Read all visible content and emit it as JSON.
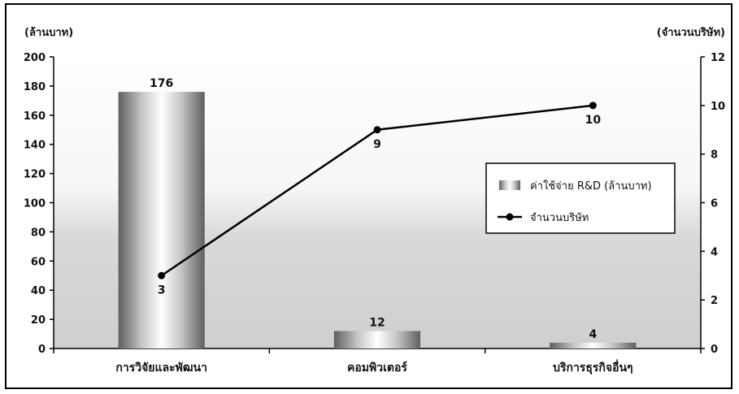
{
  "chart_data": {
    "type": "bar",
    "categories": [
      "การวิจัยและพัฒนา",
      "คอมพิวเตอร์",
      "บริการธุรกิจอื่นๆ"
    ],
    "series": [
      {
        "name": "ค่าใช้จ่าย R&D (ล้านบาท)",
        "type": "bar",
        "axis": "left",
        "values": [
          176,
          12,
          4
        ],
        "data_labels": [
          "176",
          "12",
          "4"
        ]
      },
      {
        "name": "จำนวนบริษัท",
        "type": "line",
        "axis": "right",
        "values": [
          3,
          9,
          10
        ],
        "data_labels": [
          "3",
          "9",
          "10"
        ]
      }
    ],
    "ylabel_left": "(ล้านบาท)",
    "ylabel_right": "(จำนวนบริษัท)",
    "ylim_left": [
      0,
      200
    ],
    "ylim_right": [
      0,
      12
    ],
    "yticks_left": [
      "0",
      "20",
      "40",
      "60",
      "80",
      "100",
      "120",
      "140",
      "160",
      "180",
      "200"
    ],
    "yticks_right": [
      "0",
      "2",
      "4",
      "6",
      "8",
      "10",
      "12"
    ],
    "legend_position": "right",
    "grid": false,
    "colors": {
      "bar_dark": "#6e6e6e",
      "bar_light": "#ffffff",
      "line": "#000000",
      "marker": "#000000",
      "plot_bg": "#e4e4e4"
    }
  }
}
